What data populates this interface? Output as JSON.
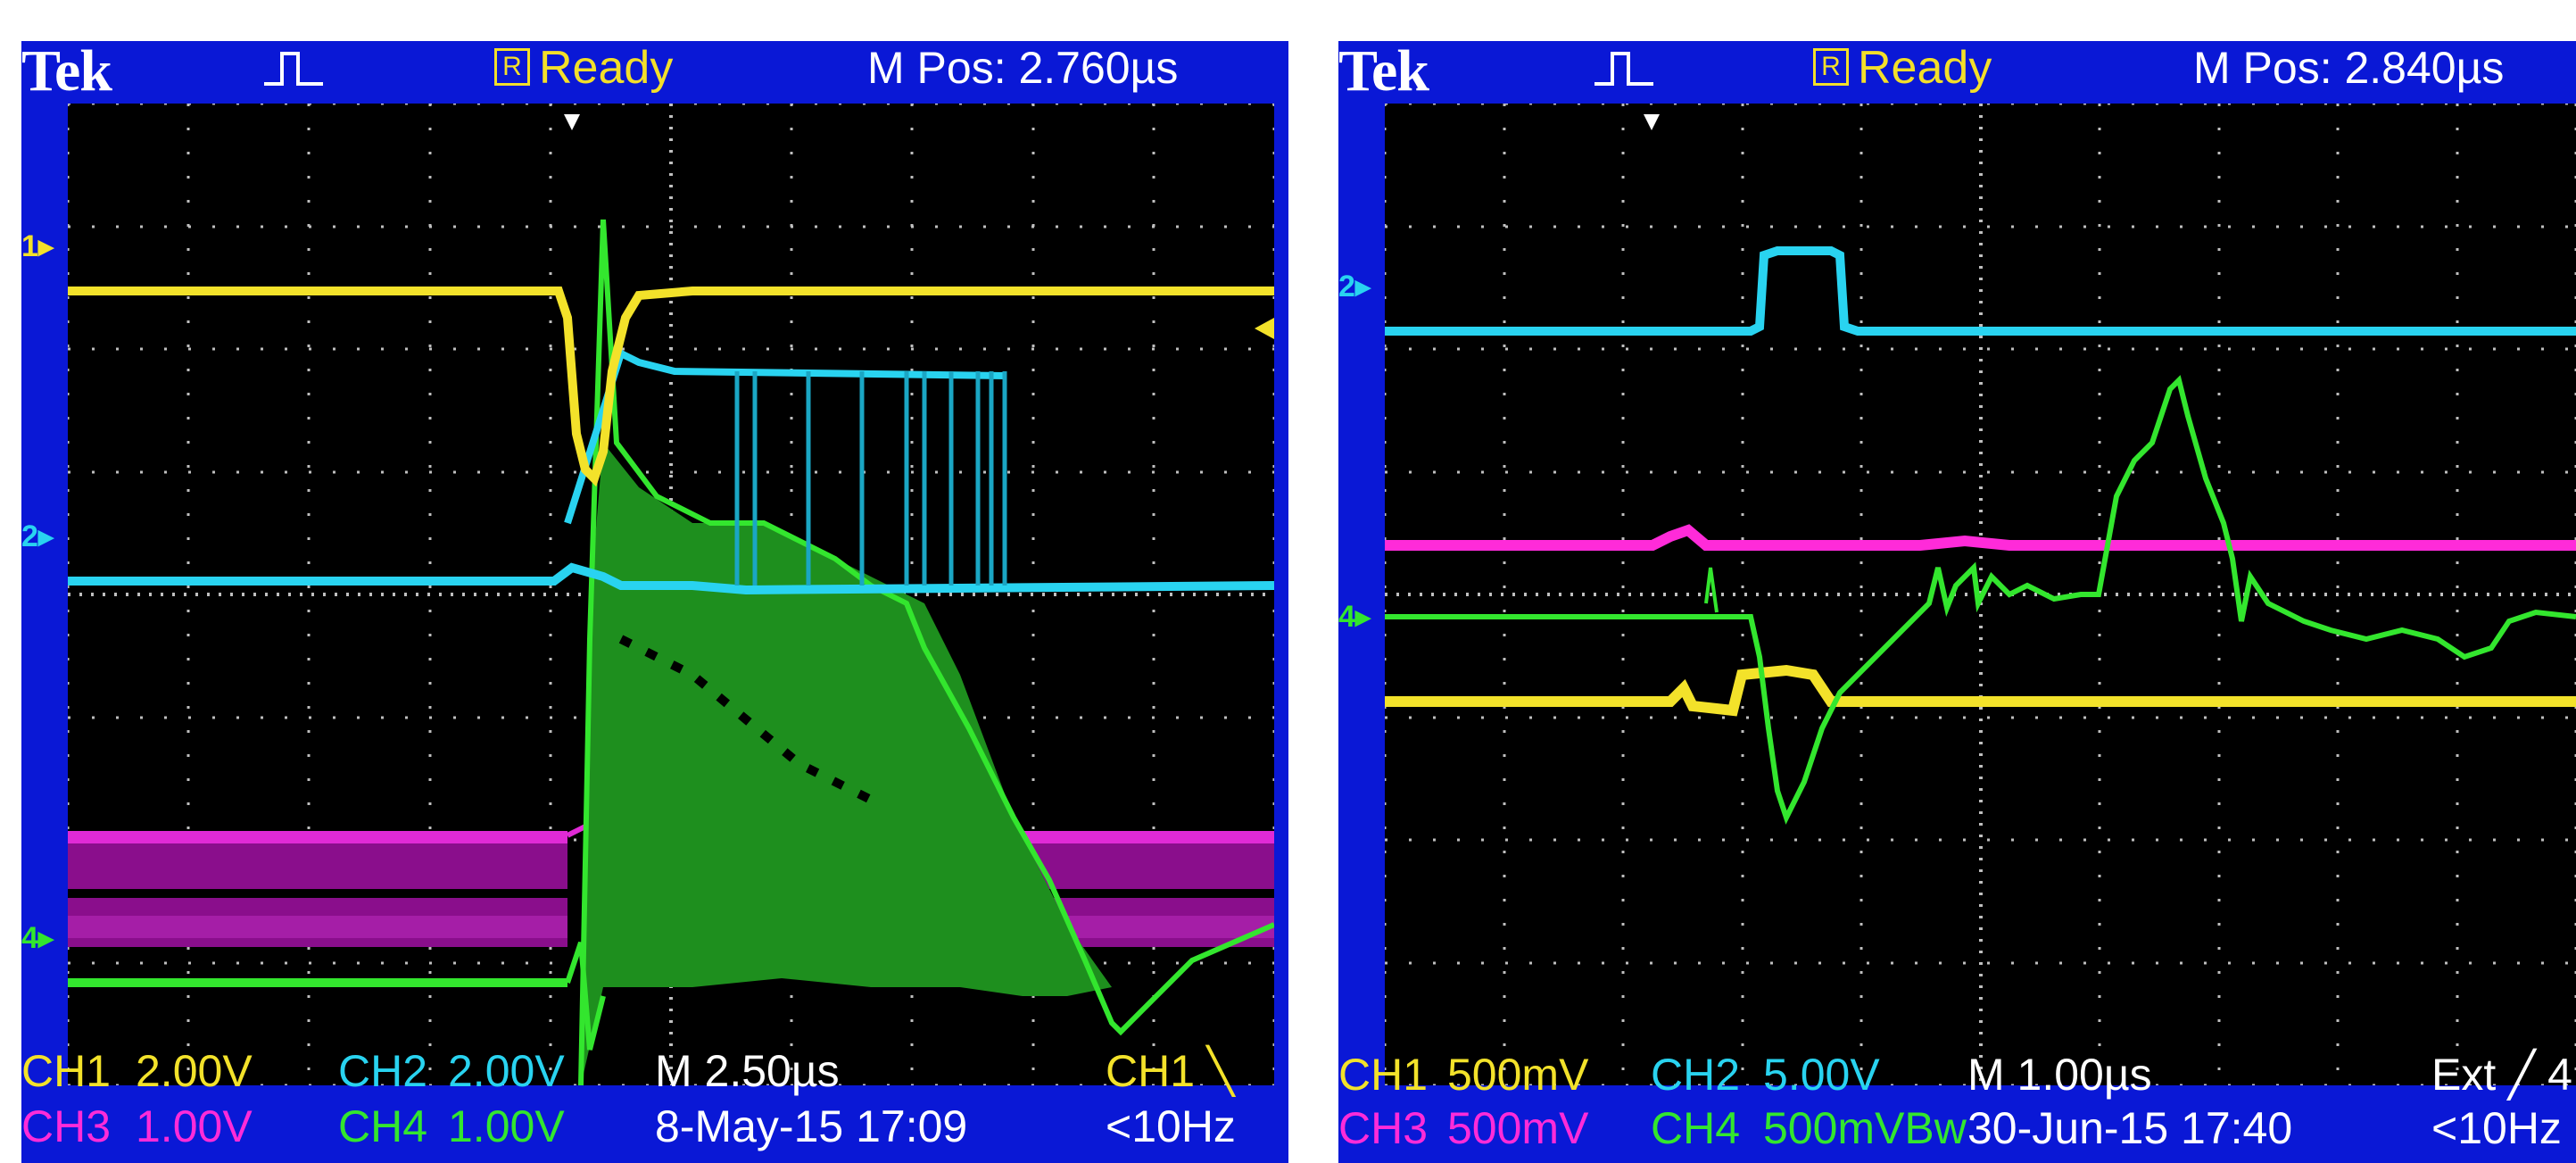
{
  "scopes": [
    {
      "brand": "Tek",
      "status_icon": "R",
      "status": "Ready",
      "mpos": "M Pos: 2.760µs",
      "trigger_marker": "trigger-position-arrow",
      "ch_markers": {
        "ch1": "1",
        "ch2": "2",
        "ch4": "4"
      },
      "settings": {
        "ch1_label": "CH1",
        "ch1_scale": "2.00V",
        "ch2_label": "CH2",
        "ch2_scale": "2.00V",
        "ch3_label": "CH3",
        "ch3_scale": "1.00V",
        "ch4_label": "CH4",
        "ch4_scale": "1.00V",
        "timebase": "M 2.50µs",
        "date": "8-May-15 17:09",
        "trigger": "CH1 ╲",
        "freq": "<10Hz"
      }
    },
    {
      "brand": "Tek",
      "status_icon": "R",
      "status": "Ready",
      "mpos": "M Pos: 2.840µs",
      "trigger_marker": "trigger-position-arrow",
      "ch_markers": {
        "ch2": "2",
        "ch4": "4"
      },
      "settings": {
        "ch1_label": "CH1",
        "ch1_scale": "500mV",
        "ch2_label": "CH2",
        "ch2_scale": "5.00V",
        "ch3_label": "CH3",
        "ch3_scale": "500mV",
        "ch4_label": "CH4",
        "ch4_scale": "500mVBw",
        "timebase": "M 1.00µs",
        "date": "30-Jun-15 17:40",
        "trigger": "Ext ╱ 4",
        "freq": "<10Hz"
      }
    }
  ],
  "colors": {
    "ch1": "#f3e22a",
    "ch2": "#29d3f0",
    "ch3": "#ff2bd9",
    "ch4": "#33e62e",
    "frame": "#0a18d6"
  }
}
